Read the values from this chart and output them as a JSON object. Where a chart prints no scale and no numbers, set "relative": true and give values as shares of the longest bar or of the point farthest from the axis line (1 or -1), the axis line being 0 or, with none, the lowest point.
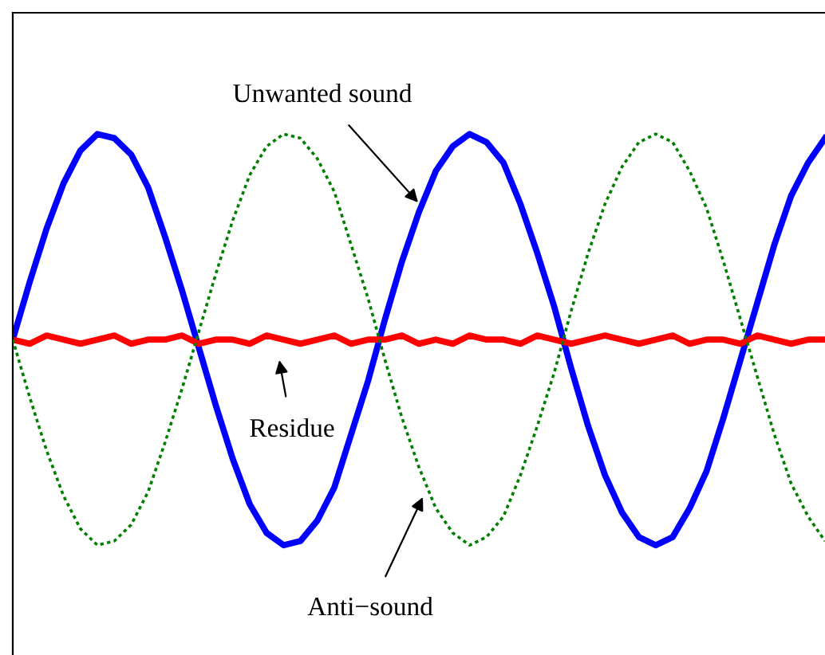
{
  "chart_data": {
    "type": "line",
    "relative": true,
    "categories": [
      null,
      null,
      null,
      null,
      null,
      null,
      null,
      null,
      null,
      null,
      null,
      null,
      null,
      null,
      null,
      null,
      null,
      null,
      null,
      null,
      null,
      null,
      null,
      null,
      null,
      null,
      null,
      null,
      null,
      null,
      null,
      null,
      null,
      null,
      null,
      null,
      null,
      null,
      null,
      null,
      null,
      null,
      null,
      null,
      null,
      null,
      null,
      null,
      null
    ],
    "series": [
      {
        "color": "#0000ff",
        "line_style": "solid",
        "values": [
          0.5,
          0.64,
          0.77,
          0.88,
          0.96,
          1.0,
          0.99,
          0.95,
          0.87,
          0.75,
          0.62,
          0.48,
          0.34,
          0.21,
          0.1,
          0.03,
          0.0,
          0.01,
          0.06,
          0.14,
          0.27,
          0.4,
          0.55,
          0.69,
          0.81,
          0.91,
          0.97,
          1.0,
          0.98,
          0.93,
          0.83,
          0.71,
          0.58,
          0.43,
          0.29,
          0.17,
          0.08,
          0.02,
          0.0,
          0.02,
          0.09,
          0.18,
          0.31,
          0.45,
          0.59,
          0.73,
          0.85,
          0.93,
          0.99
        ]
      },
      {
        "color": "#008000",
        "line_style": "dotted",
        "values": [
          0.5,
          0.36,
          0.23,
          0.12,
          0.04,
          0.0,
          0.01,
          0.05,
          0.13,
          0.25,
          0.38,
          0.52,
          0.66,
          0.79,
          0.9,
          0.97,
          1.0,
          0.99,
          0.94,
          0.86,
          0.73,
          0.6,
          0.45,
          0.31,
          0.19,
          0.09,
          0.03,
          0.0,
          0.02,
          0.07,
          0.17,
          0.29,
          0.42,
          0.57,
          0.71,
          0.83,
          0.92,
          0.98,
          1.0,
          0.98,
          0.91,
          0.82,
          0.69,
          0.55,
          0.41,
          0.27,
          0.15,
          0.07,
          0.01
        ]
      },
      {
        "color": "#ff0000",
        "line_style": "solid",
        "values": [
          0.5,
          0.49,
          0.51,
          0.5,
          0.49,
          0.5,
          0.51,
          0.49,
          0.5,
          0.5,
          0.51,
          0.49,
          0.5,
          0.5,
          0.49,
          0.51,
          0.5,
          0.49,
          0.5,
          0.51,
          0.49,
          0.5,
          0.5,
          0.51,
          0.49,
          0.5,
          0.49,
          0.51,
          0.5,
          0.5,
          0.49,
          0.51,
          0.5,
          0.49,
          0.5,
          0.51,
          0.5,
          0.49,
          0.5,
          0.51,
          0.49,
          0.5,
          0.5,
          0.49,
          0.51,
          0.5,
          0.49,
          0.5,
          0.5
        ]
      }
    ],
    "annotations": [
      "Unwanted sound",
      "Residue",
      "Anti−sound"
    ],
    "legend": false
  }
}
